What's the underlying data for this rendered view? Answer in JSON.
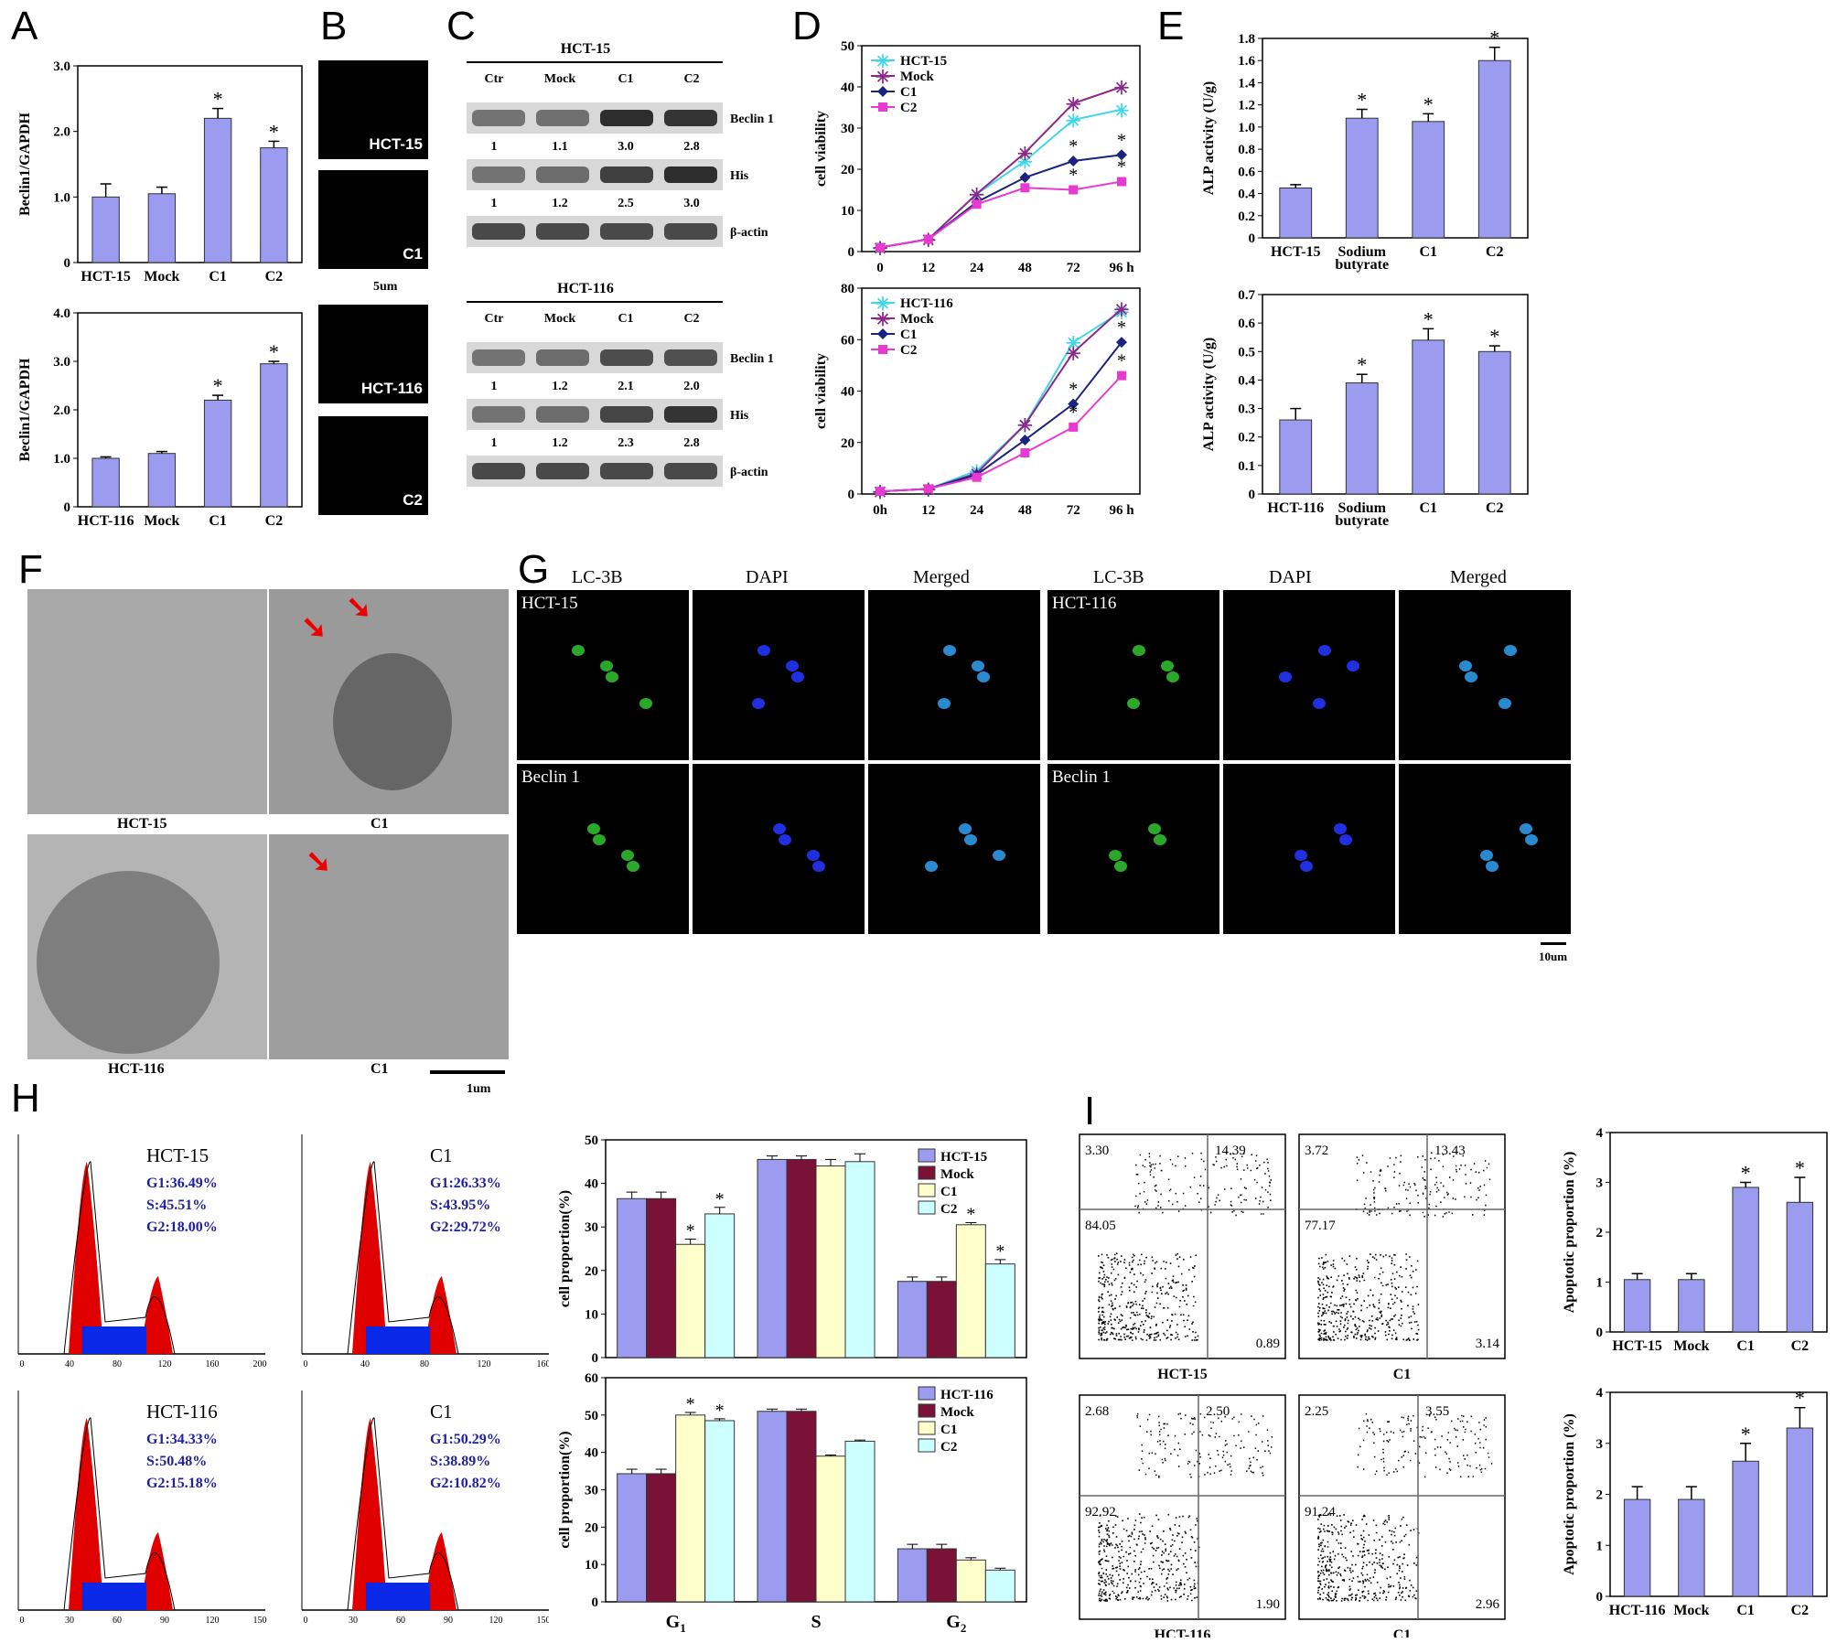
{
  "panel_labels": [
    "A",
    "B",
    "C",
    "D",
    "E",
    "F",
    "G",
    "H",
    "I"
  ],
  "chart_data": [
    {
      "id": "A1",
      "type": "bar",
      "categories": [
        "HCT-15",
        "Mock",
        "C1",
        "C2"
      ],
      "values": [
        1.0,
        1.05,
        2.2,
        1.75
      ],
      "errors": [
        0.2,
        0.1,
        0.15,
        0.1
      ],
      "sig": [
        false,
        false,
        true,
        true
      ],
      "ylabel": "Beclin1/GAPDH",
      "ylim": [
        0,
        3.0
      ],
      "yticks": [
        "0",
        "1.0",
        "2.0",
        "3.0"
      ],
      "color": "#9b9bf0"
    },
    {
      "id": "A2",
      "type": "bar",
      "categories": [
        "HCT-116",
        "Mock",
        "C1",
        "C2"
      ],
      "values": [
        1.0,
        1.1,
        2.2,
        2.95
      ],
      "errors": [
        0.03,
        0.04,
        0.1,
        0.05
      ],
      "sig": [
        false,
        false,
        true,
        true
      ],
      "ylabel": "Beclin1/GAPDH",
      "ylim": [
        0,
        4.0
      ],
      "yticks": [
        "0",
        "1.0",
        "2.0",
        "3.0",
        "4.0"
      ],
      "color": "#9b9bf0"
    },
    {
      "id": "D1",
      "type": "line",
      "x": [
        "0",
        "12",
        "24",
        "48",
        "72",
        "96 h"
      ],
      "ylabel": "cell viability",
      "ylim": [
        0,
        50
      ],
      "yticks": [
        "0",
        "10",
        "20",
        "30",
        "40",
        "50"
      ],
      "series": [
        {
          "name": "HCT-15",
          "values": [
            1,
            3,
            14,
            22,
            32,
            34.5
          ],
          "color": "#40d8e8",
          "marker": "asterisk"
        },
        {
          "name": "Mock",
          "values": [
            1,
            3,
            14,
            24,
            36,
            40
          ],
          "color": "#8a2a8a",
          "marker": "asterisk"
        },
        {
          "name": "C1",
          "values": [
            1,
            3,
            12,
            18,
            22,
            23.5
          ],
          "color": "#1a237e",
          "marker": "diamond"
        },
        {
          "name": "C2",
          "values": [
            1,
            3,
            11.5,
            15.5,
            15,
            17
          ],
          "color": "#e83ad0",
          "marker": "square"
        }
      ],
      "sig_points": [
        [
          4,
          "C1"
        ],
        [
          5,
          "C1"
        ],
        [
          4,
          "C2"
        ],
        [
          5,
          "C2"
        ]
      ]
    },
    {
      "id": "D2",
      "type": "line",
      "x": [
        "0h",
        "12",
        "24",
        "48",
        "72",
        "96 h"
      ],
      "ylabel": "cell viability",
      "ylim": [
        0,
        80
      ],
      "yticks": [
        "0",
        "20",
        "40",
        "60",
        "80"
      ],
      "series": [
        {
          "name": "HCT-116",
          "values": [
            1,
            2,
            9,
            27,
            59,
            71
          ],
          "color": "#40d8e8",
          "marker": "asterisk"
        },
        {
          "name": "Mock",
          "values": [
            1,
            2,
            8,
            27,
            55,
            72
          ],
          "color": "#8a2a8a",
          "marker": "asterisk"
        },
        {
          "name": "C1",
          "values": [
            1,
            2,
            7.5,
            21,
            35,
            59
          ],
          "color": "#1a237e",
          "marker": "diamond"
        },
        {
          "name": "C2",
          "values": [
            1,
            2,
            6.5,
            16,
            26,
            46
          ],
          "color": "#e83ad0",
          "marker": "square"
        }
      ],
      "sig_points": [
        [
          4,
          "C1"
        ],
        [
          5,
          "C1"
        ],
        [
          4,
          "C2"
        ],
        [
          5,
          "C2"
        ]
      ]
    },
    {
      "id": "E1",
      "type": "bar",
      "categories": [
        "HCT-15",
        "Sodium butyrate",
        "C1",
        "C2"
      ],
      "values": [
        0.45,
        1.08,
        1.05,
        1.6
      ],
      "errors": [
        0.03,
        0.08,
        0.07,
        0.12
      ],
      "sig": [
        false,
        true,
        true,
        true
      ],
      "ylabel": "ALP activity (U/g)",
      "ylim": [
        0,
        1.8
      ],
      "yticks": [
        "0",
        "0.2",
        "0.4",
        "0.6",
        "0.8",
        "1.0",
        "1.2",
        "1.4",
        "1.6",
        "1.8"
      ],
      "color": "#9b9bf0"
    },
    {
      "id": "E2",
      "type": "bar",
      "categories": [
        "HCT-116",
        "Sodium butyrate",
        "C1",
        "C2"
      ],
      "values": [
        0.26,
        0.39,
        0.54,
        0.5
      ],
      "errors": [
        0.04,
        0.03,
        0.04,
        0.02
      ],
      "sig": [
        false,
        true,
        true,
        true
      ],
      "ylabel": "ALP activity (U/g)",
      "ylim": [
        0,
        0.7
      ],
      "yticks": [
        "0",
        "0.1",
        "0.2",
        "0.3",
        "0.4",
        "0.5",
        "0.6",
        "0.7"
      ],
      "color": "#9b9bf0"
    },
    {
      "id": "H1",
      "type": "bar",
      "groups": [
        "G1",
        "S",
        "G2"
      ],
      "ylabel": "cell proportion(%)",
      "ylim": [
        0,
        50
      ],
      "yticks": [
        "0",
        "10",
        "20",
        "30",
        "40",
        "50"
      ],
      "series": [
        {
          "name": "HCT-15",
          "values": [
            36.5,
            45.5,
            17.5
          ],
          "errors": [
            1.5,
            0.8,
            1.0
          ],
          "color": "#9b9bf0"
        },
        {
          "name": "Mock",
          "values": [
            36.5,
            45.5,
            17.5
          ],
          "errors": [
            1.5,
            0.8,
            1.0
          ],
          "color": "#7a1238"
        },
        {
          "name": "C1",
          "values": [
            26,
            44,
            30.5
          ],
          "errors": [
            1.2,
            1.5,
            0.5
          ],
          "color": "#ffffcc"
        },
        {
          "name": "C2",
          "values": [
            33,
            45,
            21.5
          ],
          "errors": [
            1.5,
            1.8,
            1.0
          ],
          "color": "#ccffff"
        }
      ],
      "sig": [
        [
          0,
          2
        ],
        [
          0,
          3
        ],
        [
          2,
          2
        ],
        [
          2,
          3
        ]
      ]
    },
    {
      "id": "H2",
      "type": "bar",
      "groups": [
        "G1",
        "S",
        "G2"
      ],
      "ylabel": "cell proportion(%)",
      "ylim": [
        0,
        60
      ],
      "yticks": [
        "0",
        "10",
        "20",
        "30",
        "40",
        "50",
        "60"
      ],
      "series": [
        {
          "name": "HCT-116",
          "values": [
            34.3,
            51,
            14.2
          ],
          "errors": [
            1.2,
            0.6,
            1.2
          ],
          "color": "#9b9bf0"
        },
        {
          "name": "Mock",
          "values": [
            34.3,
            51,
            14.2
          ],
          "errors": [
            1.2,
            0.6,
            1.2
          ],
          "color": "#7a1238"
        },
        {
          "name": "C1",
          "values": [
            50,
            39,
            11.2
          ],
          "errors": [
            0.7,
            0.3,
            0.6
          ],
          "color": "#ffffcc"
        },
        {
          "name": "C2",
          "values": [
            48.5,
            43,
            8.5
          ],
          "errors": [
            0.5,
            0.3,
            0.5
          ],
          "color": "#ccffff"
        }
      ],
      "sig": [
        [
          0,
          2
        ],
        [
          0,
          3
        ]
      ]
    },
    {
      "id": "I1",
      "type": "bar",
      "categories": [
        "HCT-15",
        "Mock",
        "C1",
        "C2"
      ],
      "values": [
        1.05,
        1.05,
        2.9,
        2.6
      ],
      "errors": [
        0.12,
        0.12,
        0.1,
        0.5
      ],
      "sig": [
        false,
        false,
        true,
        true
      ],
      "ylabel": "Apoptotic proportion (%)",
      "ylim": [
        0,
        4
      ],
      "yticks": [
        "0",
        "1",
        "2",
        "3",
        "4"
      ],
      "color": "#9b9bf0"
    },
    {
      "id": "I2",
      "type": "bar",
      "categories": [
        "HCT-116",
        "Mock",
        "C1",
        "C2"
      ],
      "values": [
        1.9,
        1.9,
        2.65,
        3.3
      ],
      "errors": [
        0.25,
        0.25,
        0.35,
        0.4
      ],
      "sig": [
        false,
        false,
        true,
        true
      ],
      "ylabel": "Apoptotic proportion (%)",
      "ylim": [
        0,
        4
      ],
      "yticks": [
        "0",
        "1",
        "2",
        "3",
        "4"
      ],
      "color": "#9b9bf0"
    },
    {
      "id": "H_hist",
      "type": "histogram",
      "panels": [
        {
          "title": "HCT-15",
          "g1": "G1:36.49%",
          "s": "S:45.51%",
          "g2": "G2:18.00%",
          "xticks": [
            "0",
            "40",
            "80",
            "120",
            "160",
            "200"
          ]
        },
        {
          "title": "C1",
          "g1": "G1:26.33%",
          "s": "S:43.95%",
          "g2": "G2:29.72%",
          "xticks": [
            "0",
            "40",
            "80",
            "120",
            "160"
          ]
        },
        {
          "title": "HCT-116",
          "g1": "G1:34.33%",
          "s": "S:50.48%",
          "g2": "G2:15.18%",
          "xticks": [
            "0",
            "30",
            "60",
            "90",
            "120",
            "150"
          ]
        },
        {
          "title": "C1",
          "g1": "G1:50.29%",
          "s": "S:38.89%",
          "g2": "G2:10.82%",
          "xticks": [
            "0",
            "30",
            "60",
            "90",
            "120",
            "150"
          ]
        }
      ]
    },
    {
      "id": "I_flow",
      "type": "scatter",
      "panels": [
        {
          "xlabel": "HCT-15",
          "q_ul": "3.30",
          "q_ur": "14.39",
          "q_ll": "84.05",
          "q_lr": "0.89"
        },
        {
          "xlabel": "C1",
          "q_ul": "3.72",
          "q_ur": "13.43",
          "q_ll": "77.17",
          "q_lr": "3.14"
        },
        {
          "xlabel": "HCT-116",
          "q_ul": "2.68",
          "q_ur": "2.50",
          "q_ll": "92.92",
          "q_lr": "1.90"
        },
        {
          "xlabel": "C1",
          "q_ul": "2.25",
          "q_ur": "3.55",
          "q_ll": "91.24",
          "q_lr": "2.96"
        }
      ]
    }
  ],
  "panel_B": {
    "labels": [
      "HCT-15",
      "C1",
      "HCT-116",
      "C2"
    ],
    "scale": "5um"
  },
  "panel_C": {
    "blots": [
      {
        "title": "HCT-15",
        "lanes": [
          "Ctr",
          "Mock",
          "C1",
          "C2"
        ],
        "rows": [
          {
            "label": "Beclin 1",
            "values": [
              "1",
              "1.1",
              "3.0",
              "2.8"
            ]
          },
          {
            "label": "His",
            "values": [
              "1",
              "1.2",
              "2.5",
              "3.0"
            ]
          },
          {
            "label": "β-actin",
            "values": []
          }
        ]
      },
      {
        "title": "HCT-116",
        "lanes": [
          "Ctr",
          "Mock",
          "C1",
          "C2"
        ],
        "rows": [
          {
            "label": "Beclin 1",
            "values": [
              "1",
              "1.2",
              "2.1",
              "2.0"
            ]
          },
          {
            "label": "His",
            "values": [
              "1",
              "1.2",
              "2.3",
              "2.8"
            ]
          },
          {
            "label": "β-actin",
            "values": []
          }
        ]
      }
    ]
  },
  "panel_F": {
    "captions": [
      "HCT-15",
      "C1",
      "HCT-116",
      "C1"
    ],
    "scale": "1um"
  },
  "panel_G": {
    "headers": [
      "LC-3B",
      "DAPI",
      "Merged",
      "LC-3B",
      "DAPI",
      "Merged"
    ],
    "row_labels": [
      "HCT-15",
      "Beclin 1",
      "HCT-116",
      "Beclin 1"
    ],
    "scale": "10um"
  }
}
